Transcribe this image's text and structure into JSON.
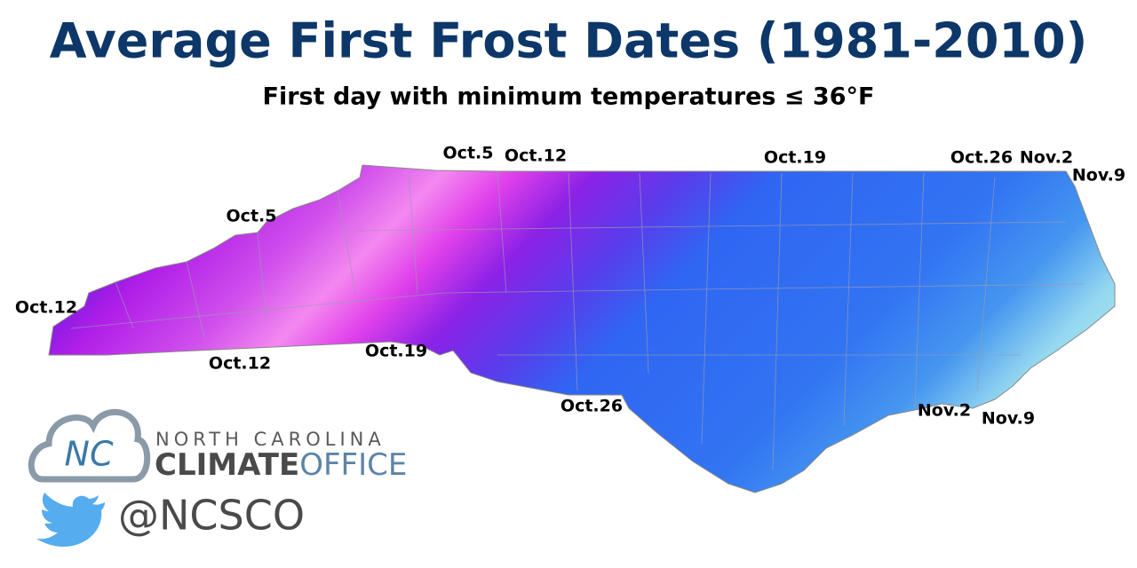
{
  "header": {
    "title": "Average First Frost Dates (1981-2010)",
    "subtitle": "First day with minimum temperatures ≤ 36°F"
  },
  "map": {
    "labels": [
      "Oct.5",
      "Oct.12",
      "Oct.19",
      "Oct.26",
      "Nov.2",
      "Nov.9",
      "Oct.5",
      "Oct.12",
      "Oct.12",
      "Oct.19",
      "Oct.26",
      "Nov.2",
      "Nov.9"
    ]
  },
  "logo": {
    "mark": "NC",
    "org": "NORTH CAROLINA",
    "climate": "CLIMATE",
    "office": "OFFICE",
    "handle": "@NCSCO"
  }
}
